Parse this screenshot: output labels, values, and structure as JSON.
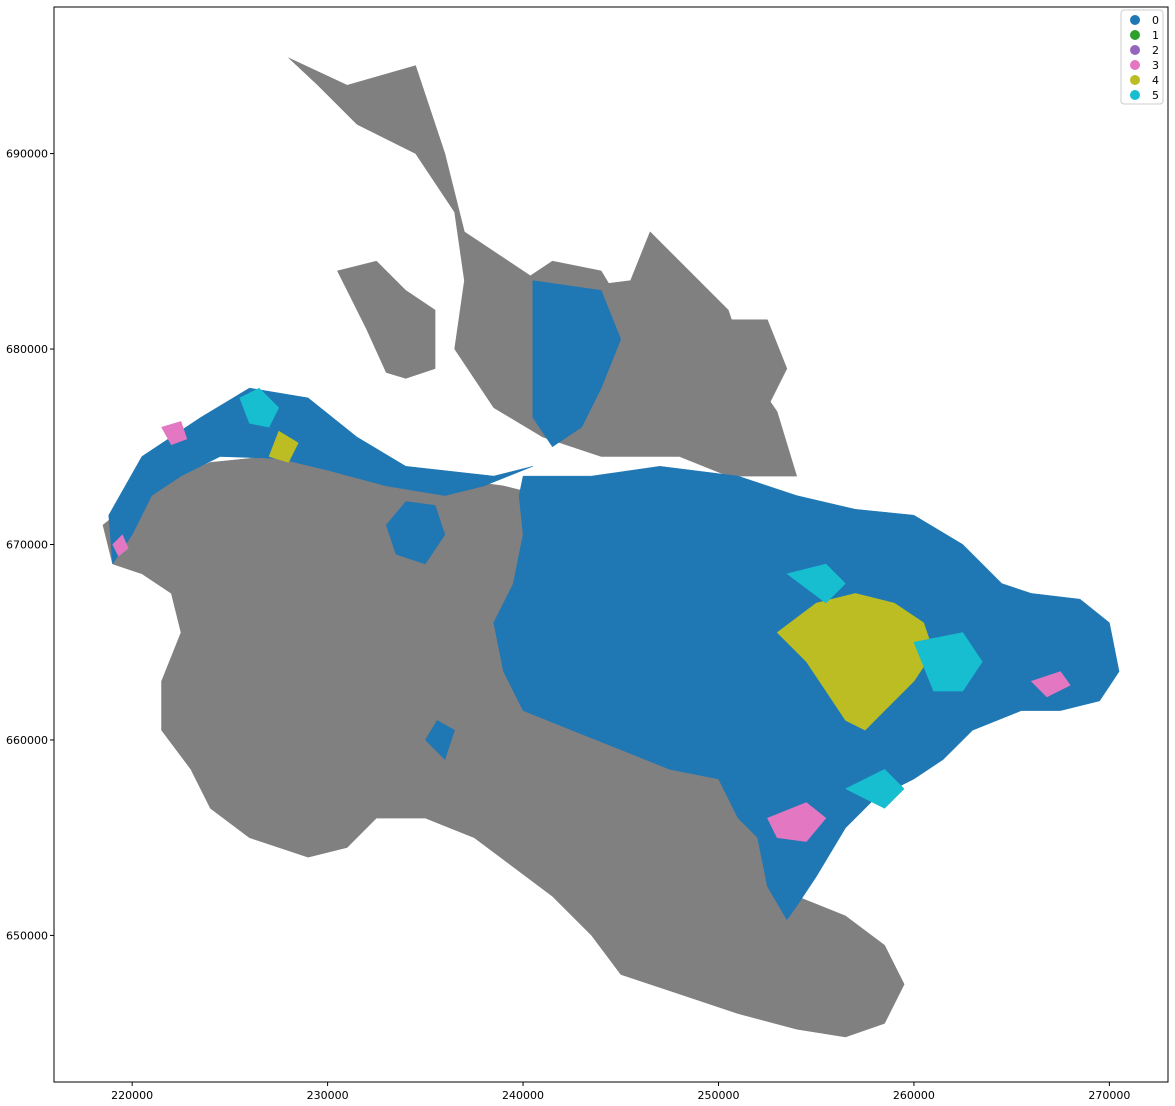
{
  "chart_data": {
    "type": "choropleth",
    "xlim": [
      216000,
      273000
    ],
    "ylim": [
      642500,
      697500
    ],
    "x_ticks": [
      220000,
      230000,
      240000,
      250000,
      260000,
      270000
    ],
    "y_ticks": [
      650000,
      660000,
      670000,
      680000,
      690000
    ],
    "x_tick_labels": [
      "220000",
      "230000",
      "240000",
      "250000",
      "260000",
      "270000"
    ],
    "y_tick_labels": [
      "650000",
      "660000",
      "670000",
      "680000",
      "690000"
    ],
    "grid": false,
    "legend_position": "top-right",
    "no_data_color": "#808080",
    "legend": [
      {
        "label": "0",
        "color": "#1f77b4"
      },
      {
        "label": "1",
        "color": "#2ca02c"
      },
      {
        "label": "2",
        "color": "#9467bd"
      },
      {
        "label": "3",
        "color": "#e377c2"
      },
      {
        "label": "4",
        "color": "#bcbd22"
      },
      {
        "label": "5",
        "color": "#17becf"
      }
    ],
    "regions": [
      {
        "cluster": "none",
        "points": [
          [
            228,
            694.9
          ],
          [
            231,
            693.5
          ],
          [
            234.5,
            694.5
          ],
          [
            236,
            690
          ],
          [
            237,
            686
          ],
          [
            241.5,
            683
          ],
          [
            245.5,
            683.5
          ],
          [
            246.5,
            686
          ],
          [
            248.5,
            684
          ],
          [
            250.5,
            682
          ],
          [
            251.5,
            679
          ],
          [
            253,
            676.8
          ],
          [
            254,
            673.5
          ],
          [
            250.5,
            673.5
          ],
          [
            248,
            674.5
          ],
          [
            244,
            674.5
          ],
          [
            241,
            675.5
          ],
          [
            238.5,
            677
          ],
          [
            236.5,
            680
          ],
          [
            237,
            683.5
          ],
          [
            236.5,
            687
          ],
          [
            234.5,
            690
          ],
          [
            231.5,
            691.5
          ],
          [
            229.5,
            693.5
          ]
        ]
      },
      {
        "cluster": "none",
        "points": [
          [
            249.5,
            681.5
          ],
          [
            252.5,
            681.5
          ],
          [
            253.5,
            679
          ],
          [
            252,
            676
          ],
          [
            250,
            677.5
          ]
        ]
      },
      {
        "cluster": "none",
        "points": [
          [
            240,
            683.5
          ],
          [
            241,
            680
          ],
          [
            243,
            679
          ],
          [
            244.8,
            679.8
          ],
          [
            245.2,
            682
          ],
          [
            244,
            684
          ],
          [
            241.5,
            684.5
          ]
        ]
      },
      {
        "cluster": "none",
        "points": [
          [
            230.5,
            684
          ],
          [
            232.5,
            684.5
          ],
          [
            234,
            683
          ],
          [
            235.5,
            682
          ],
          [
            235.5,
            679
          ],
          [
            234,
            678.5
          ],
          [
            233,
            678.8
          ],
          [
            232,
            681
          ],
          [
            231,
            683
          ]
        ]
      },
      {
        "cluster": "none",
        "points": [
          [
            219,
            669
          ],
          [
            218.5,
            671
          ],
          [
            221,
            673
          ],
          [
            224,
            674.2
          ],
          [
            227,
            674.5
          ],
          [
            233,
            673.8
          ],
          [
            239,
            673
          ],
          [
            245,
            671.5
          ],
          [
            250,
            670.5
          ],
          [
            253,
            670
          ],
          [
            257,
            669.5
          ],
          [
            260,
            668.5
          ],
          [
            262,
            667
          ],
          [
            263,
            664.5
          ],
          [
            262.5,
            662
          ],
          [
            260,
            660.5
          ],
          [
            257,
            659.5
          ],
          [
            255,
            657.5
          ],
          [
            254,
            655.5
          ],
          [
            252.5,
            654.5
          ],
          [
            254,
            652
          ],
          [
            256.5,
            651
          ],
          [
            258.5,
            649.5
          ],
          [
            259.5,
            647.5
          ],
          [
            258.5,
            645.5
          ],
          [
            256.5,
            644.8
          ],
          [
            254,
            645.2
          ],
          [
            251,
            646
          ],
          [
            248,
            647
          ],
          [
            245,
            648
          ],
          [
            243.5,
            650
          ],
          [
            241.5,
            652
          ],
          [
            239.5,
            653.5
          ],
          [
            237.5,
            655
          ],
          [
            235,
            656
          ],
          [
            232.5,
            656
          ],
          [
            231,
            654.5
          ],
          [
            229,
            654
          ],
          [
            226,
            655
          ],
          [
            224,
            656.5
          ],
          [
            223,
            658.5
          ],
          [
            221.5,
            660.5
          ],
          [
            221.5,
            663
          ],
          [
            222.5,
            665.5
          ],
          [
            222,
            667.5
          ],
          [
            220.5,
            668.5
          ]
        ]
      },
      {
        "cluster": 0,
        "points": [
          [
            219,
            669
          ],
          [
            218.8,
            671.5
          ],
          [
            220.5,
            674.5
          ],
          [
            223.5,
            676.5
          ],
          [
            226,
            678
          ],
          [
            229,
            677.5
          ],
          [
            231.5,
            675.5
          ],
          [
            234,
            674
          ],
          [
            238.5,
            673.5
          ],
          [
            240.5,
            674
          ],
          [
            238,
            673
          ],
          [
            236,
            672.5
          ],
          [
            233,
            673
          ],
          [
            230,
            673.8
          ],
          [
            227.5,
            674.4
          ],
          [
            224.5,
            674.5
          ],
          [
            222.5,
            673.5
          ],
          [
            221,
            672.5
          ],
          [
            220,
            670.5
          ]
        ]
      },
      {
        "cluster": 0,
        "points": [
          [
            240.5,
            683.5
          ],
          [
            244,
            683
          ],
          [
            245,
            680.5
          ],
          [
            244,
            678
          ],
          [
            243,
            676
          ],
          [
            241.5,
            675
          ],
          [
            240.5,
            676.5
          ],
          [
            240.5,
            679.5
          ]
        ]
      },
      {
        "cluster": 0,
        "points": [
          [
            240,
            673.5
          ],
          [
            243.5,
            673.5
          ],
          [
            247,
            674
          ],
          [
            251,
            673.5
          ],
          [
            254,
            672.5
          ],
          [
            257,
            671.8
          ],
          [
            260,
            671.5
          ],
          [
            262.5,
            670
          ],
          [
            264.5,
            668
          ],
          [
            266,
            667.5
          ],
          [
            268.5,
            667.2
          ],
          [
            270,
            666
          ],
          [
            270.5,
            663.5
          ],
          [
            269.5,
            662
          ],
          [
            267.5,
            661.5
          ],
          [
            265.5,
            661.5
          ],
          [
            263,
            660.5
          ],
          [
            261.5,
            659
          ],
          [
            260,
            658
          ],
          [
            258,
            657
          ],
          [
            256.5,
            655.5
          ],
          [
            255,
            653
          ],
          [
            254,
            651.5
          ],
          [
            253.5,
            650.8
          ],
          [
            252.5,
            652.5
          ],
          [
            252,
            655
          ],
          [
            251,
            656
          ],
          [
            250,
            658
          ],
          [
            247.5,
            658.5
          ],
          [
            245,
            659.5
          ],
          [
            242.5,
            660.5
          ],
          [
            240,
            661.5
          ],
          [
            239,
            663.5
          ],
          [
            238.5,
            666
          ],
          [
            239.5,
            668
          ],
          [
            240,
            670.5
          ],
          [
            239.8,
            672.5
          ]
        ]
      },
      {
        "cluster": 0,
        "points": [
          [
            233.5,
            669.5
          ],
          [
            235,
            669
          ],
          [
            236,
            670.5
          ],
          [
            235.5,
            672
          ],
          [
            234,
            672.2
          ],
          [
            233,
            671
          ]
        ]
      },
      {
        "cluster": 0,
        "points": [
          [
            235,
            660
          ],
          [
            236,
            659
          ],
          [
            236.5,
            660.5
          ],
          [
            235.6,
            661
          ]
        ]
      },
      {
        "cluster": 4,
        "points": [
          [
            253,
            665.5
          ],
          [
            255,
            667
          ],
          [
            257,
            667.5
          ],
          [
            259,
            667
          ],
          [
            260.5,
            666
          ],
          [
            261,
            664.5
          ],
          [
            260,
            663
          ],
          [
            258.5,
            661.5
          ],
          [
            257.5,
            660.5
          ],
          [
            256.5,
            661
          ],
          [
            255.5,
            662.5
          ],
          [
            254.5,
            664
          ]
        ]
      },
      {
        "cluster": 4,
        "points": [
          [
            227,
            674.5
          ],
          [
            227.5,
            675.8
          ],
          [
            228.5,
            675.2
          ],
          [
            228,
            674.2
          ]
        ]
      },
      {
        "cluster": 5,
        "points": [
          [
            225.5,
            677.5
          ],
          [
            226.5,
            678
          ],
          [
            227.5,
            677
          ],
          [
            227,
            676
          ],
          [
            226,
            676.2
          ]
        ]
      },
      {
        "cluster": 5,
        "points": [
          [
            253.5,
            668.5
          ],
          [
            255.5,
            669
          ],
          [
            256.5,
            668
          ],
          [
            255.5,
            667
          ]
        ]
      },
      {
        "cluster": 5,
        "points": [
          [
            260,
            665
          ],
          [
            262.5,
            665.5
          ],
          [
            263.5,
            664
          ],
          [
            262.5,
            662.5
          ],
          [
            261,
            662.5
          ]
        ]
      },
      {
        "cluster": 5,
        "points": [
          [
            256.5,
            657.5
          ],
          [
            258.5,
            658.5
          ],
          [
            259.5,
            657.5
          ],
          [
            258.5,
            656.5
          ]
        ]
      },
      {
        "cluster": 3,
        "points": [
          [
            252.5,
            656
          ],
          [
            254.5,
            656.8
          ],
          [
            255.5,
            656
          ],
          [
            254.5,
            654.8
          ],
          [
            253,
            655
          ]
        ]
      },
      {
        "cluster": 3,
        "points": [
          [
            221.5,
            676
          ],
          [
            222.5,
            676.3
          ],
          [
            222.8,
            675.4
          ],
          [
            222,
            675.1
          ]
        ]
      },
      {
        "cluster": 3,
        "points": [
          [
            219,
            670
          ],
          [
            219.5,
            670.5
          ],
          [
            219.8,
            669.8
          ],
          [
            219.3,
            669.4
          ]
        ]
      },
      {
        "cluster": 3,
        "points": [
          [
            266,
            663
          ],
          [
            267.5,
            663.5
          ],
          [
            268,
            662.8
          ],
          [
            266.8,
            662.2
          ]
        ]
      }
    ]
  }
}
